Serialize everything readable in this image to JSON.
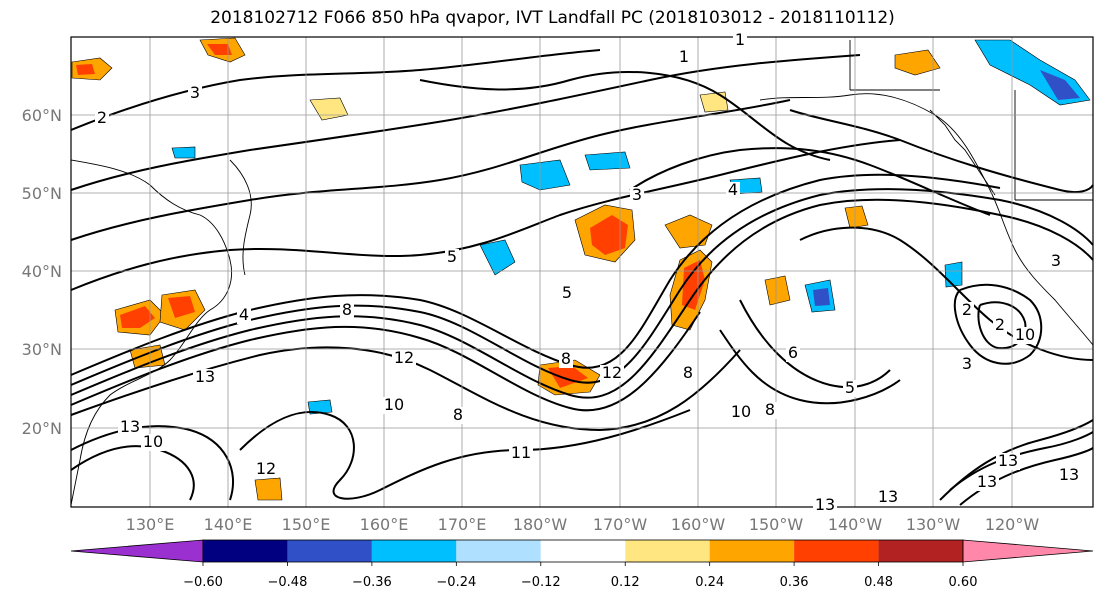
{
  "title": "2018102712 F066 850 hPa qvapor, IVT Landfall PC (2018103012 - 2018110112)",
  "map": {
    "lat_ticks": [
      "60°N",
      "50°N",
      "40°N",
      "30°N",
      "20°N"
    ],
    "lon_ticks": [
      "130°E",
      "140°E",
      "150°E",
      "160°E",
      "170°E",
      "180°W",
      "170°W",
      "160°W",
      "150°W",
      "140°W",
      "130°W",
      "120°W"
    ],
    "contour_labels": [
      "1",
      "1",
      "2",
      "3",
      "3",
      "4",
      "5",
      "2",
      "4",
      "8",
      "12",
      "10",
      "8",
      "5",
      "8",
      "12",
      "13",
      "10",
      "12",
      "11",
      "6",
      "8",
      "8",
      "13",
      "13",
      "2",
      "10",
      "3",
      "5",
      "10",
      "13",
      "13",
      "13",
      "13",
      "3"
    ]
  },
  "colorbar": {
    "colors": [
      "#9b30d0",
      "#000080",
      "#3050c8",
      "#00bfff",
      "#b0e0ff",
      "#ffffff",
      "#ffe680",
      "#ffa500",
      "#ff4000",
      "#b22222",
      "#ff88aa"
    ],
    "tick_labels": [
      "−0.60",
      "−0.48",
      "−0.36",
      "−0.24",
      "−0.12",
      "0.12",
      "0.24",
      "0.36",
      "0.48",
      "0.60"
    ]
  }
}
